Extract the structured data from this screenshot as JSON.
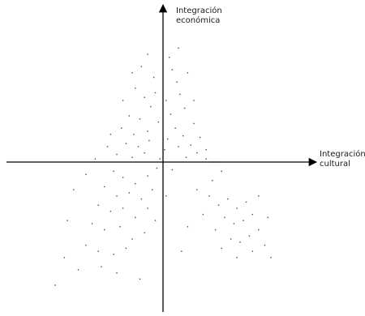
{
  "chart_data": {
    "type": "scatter",
    "title": "",
    "xlabel": {
      "line1": "Integración",
      "line2": "cultural"
    },
    "ylabel": {
      "line1": "Integración",
      "line2": "económica"
    },
    "xlim": [
      -1,
      1
    ],
    "ylim": [
      -1,
      1
    ],
    "grid": false,
    "ticks": false,
    "point_color": "#4a4a4a",
    "axis_color": "#000000",
    "series": [
      {
        "points": [
          [
            -0.18,
            0.48
          ],
          [
            -0.12,
            0.42
          ],
          [
            -0.08,
            0.36
          ],
          [
            -0.22,
            0.3
          ],
          [
            -0.15,
            0.28
          ],
          [
            -0.05,
            0.45
          ],
          [
            0.02,
            0.4
          ],
          [
            -0.27,
            0.22
          ],
          [
            -0.19,
            0.18
          ],
          [
            -0.1,
            0.2
          ],
          [
            -0.03,
            0.26
          ],
          [
            0.05,
            0.31
          ],
          [
            0.09,
            0.52
          ],
          [
            0.11,
            0.44
          ],
          [
            -0.24,
            0.12
          ],
          [
            -0.16,
            0.1
          ],
          [
            -0.09,
            0.14
          ],
          [
            0.03,
            0.15
          ],
          [
            0.08,
            0.22
          ],
          [
            0.13,
            0.17
          ],
          [
            0.18,
            0.11
          ],
          [
            0.22,
            0.06
          ],
          [
            -0.3,
            0.05
          ],
          [
            -0.2,
            0.03
          ],
          [
            -0.12,
            0.06
          ],
          [
            0.01,
            0.08
          ],
          [
            0.15,
            0.03
          ],
          [
            0.28,
            0.02
          ],
          [
            -0.06,
            0.55
          ],
          [
            0.06,
            0.6
          ],
          [
            0.04,
            0.68
          ],
          [
            0.1,
            0.74
          ],
          [
            -0.14,
            0.62
          ],
          [
            0.14,
            0.35
          ],
          [
            0.2,
            0.25
          ],
          [
            0.24,
            0.16
          ],
          [
            -0.32,
            -0.06
          ],
          [
            -0.26,
            -0.1
          ],
          [
            -0.18,
            -0.14
          ],
          [
            -0.1,
            -0.09
          ],
          [
            -0.04,
            -0.04
          ],
          [
            0.06,
            -0.05
          ],
          [
            -0.38,
            -0.16
          ],
          [
            -0.3,
            -0.22
          ],
          [
            -0.22,
            -0.2
          ],
          [
            -0.14,
            -0.24
          ],
          [
            -0.07,
            -0.18
          ],
          [
            -0.42,
            -0.28
          ],
          [
            -0.34,
            -0.32
          ],
          [
            -0.26,
            -0.3
          ],
          [
            -0.18,
            -0.36
          ],
          [
            -0.1,
            -0.3
          ],
          [
            -0.46,
            -0.4
          ],
          [
            -0.38,
            -0.44
          ],
          [
            -0.28,
            -0.42
          ],
          [
            -0.2,
            -0.5
          ],
          [
            -0.12,
            -0.46
          ],
          [
            -0.05,
            -0.38
          ],
          [
            -0.5,
            -0.54
          ],
          [
            -0.42,
            -0.58
          ],
          [
            -0.32,
            -0.6
          ],
          [
            -0.24,
            -0.56
          ],
          [
            -0.55,
            -0.7
          ],
          [
            -0.4,
            -0.68
          ],
          [
            -0.3,
            -0.72
          ],
          [
            -0.62,
            -0.38
          ],
          [
            -0.58,
            -0.18
          ],
          [
            -0.5,
            -0.08
          ],
          [
            -0.44,
            0.02
          ],
          [
            -0.36,
            0.1
          ],
          [
            -0.34,
            0.18
          ],
          [
            0.3,
            -0.22
          ],
          [
            0.36,
            -0.28
          ],
          [
            0.42,
            -0.24
          ],
          [
            0.48,
            -0.3
          ],
          [
            0.54,
            -0.26
          ],
          [
            0.4,
            -0.36
          ],
          [
            0.46,
            -0.4
          ],
          [
            0.52,
            -0.38
          ],
          [
            0.58,
            -0.34
          ],
          [
            0.34,
            -0.44
          ],
          [
            0.44,
            -0.5
          ],
          [
            0.5,
            -0.52
          ],
          [
            0.56,
            -0.48
          ],
          [
            0.62,
            -0.44
          ],
          [
            0.38,
            -0.56
          ],
          [
            0.48,
            -0.62
          ],
          [
            0.58,
            -0.58
          ],
          [
            0.66,
            -0.54
          ],
          [
            0.7,
            -0.62
          ],
          [
            0.32,
            -0.12
          ],
          [
            0.38,
            -0.06
          ],
          [
            0.26,
            -0.34
          ],
          [
            0.22,
            -0.18
          ],
          [
            0.28,
            0.08
          ],
          [
            0.33,
            0.0
          ],
          [
            0.62,
            -0.22
          ],
          [
            0.68,
            -0.36
          ],
          [
            -0.64,
            -0.62
          ],
          [
            -0.7,
            -0.8
          ],
          [
            -0.15,
            -0.76
          ],
          [
            0.16,
            -0.42
          ],
          [
            0.12,
            -0.58
          ],
          [
            0.02,
            -0.22
          ],
          [
            -0.02,
            0.02
          ],
          [
            0.1,
            0.1
          ],
          [
            0.2,
            0.4
          ],
          [
            0.16,
            0.58
          ],
          [
            -0.26,
            0.4
          ],
          [
            -0.2,
            0.58
          ],
          [
            -0.1,
            0.7
          ]
        ]
      }
    ]
  }
}
